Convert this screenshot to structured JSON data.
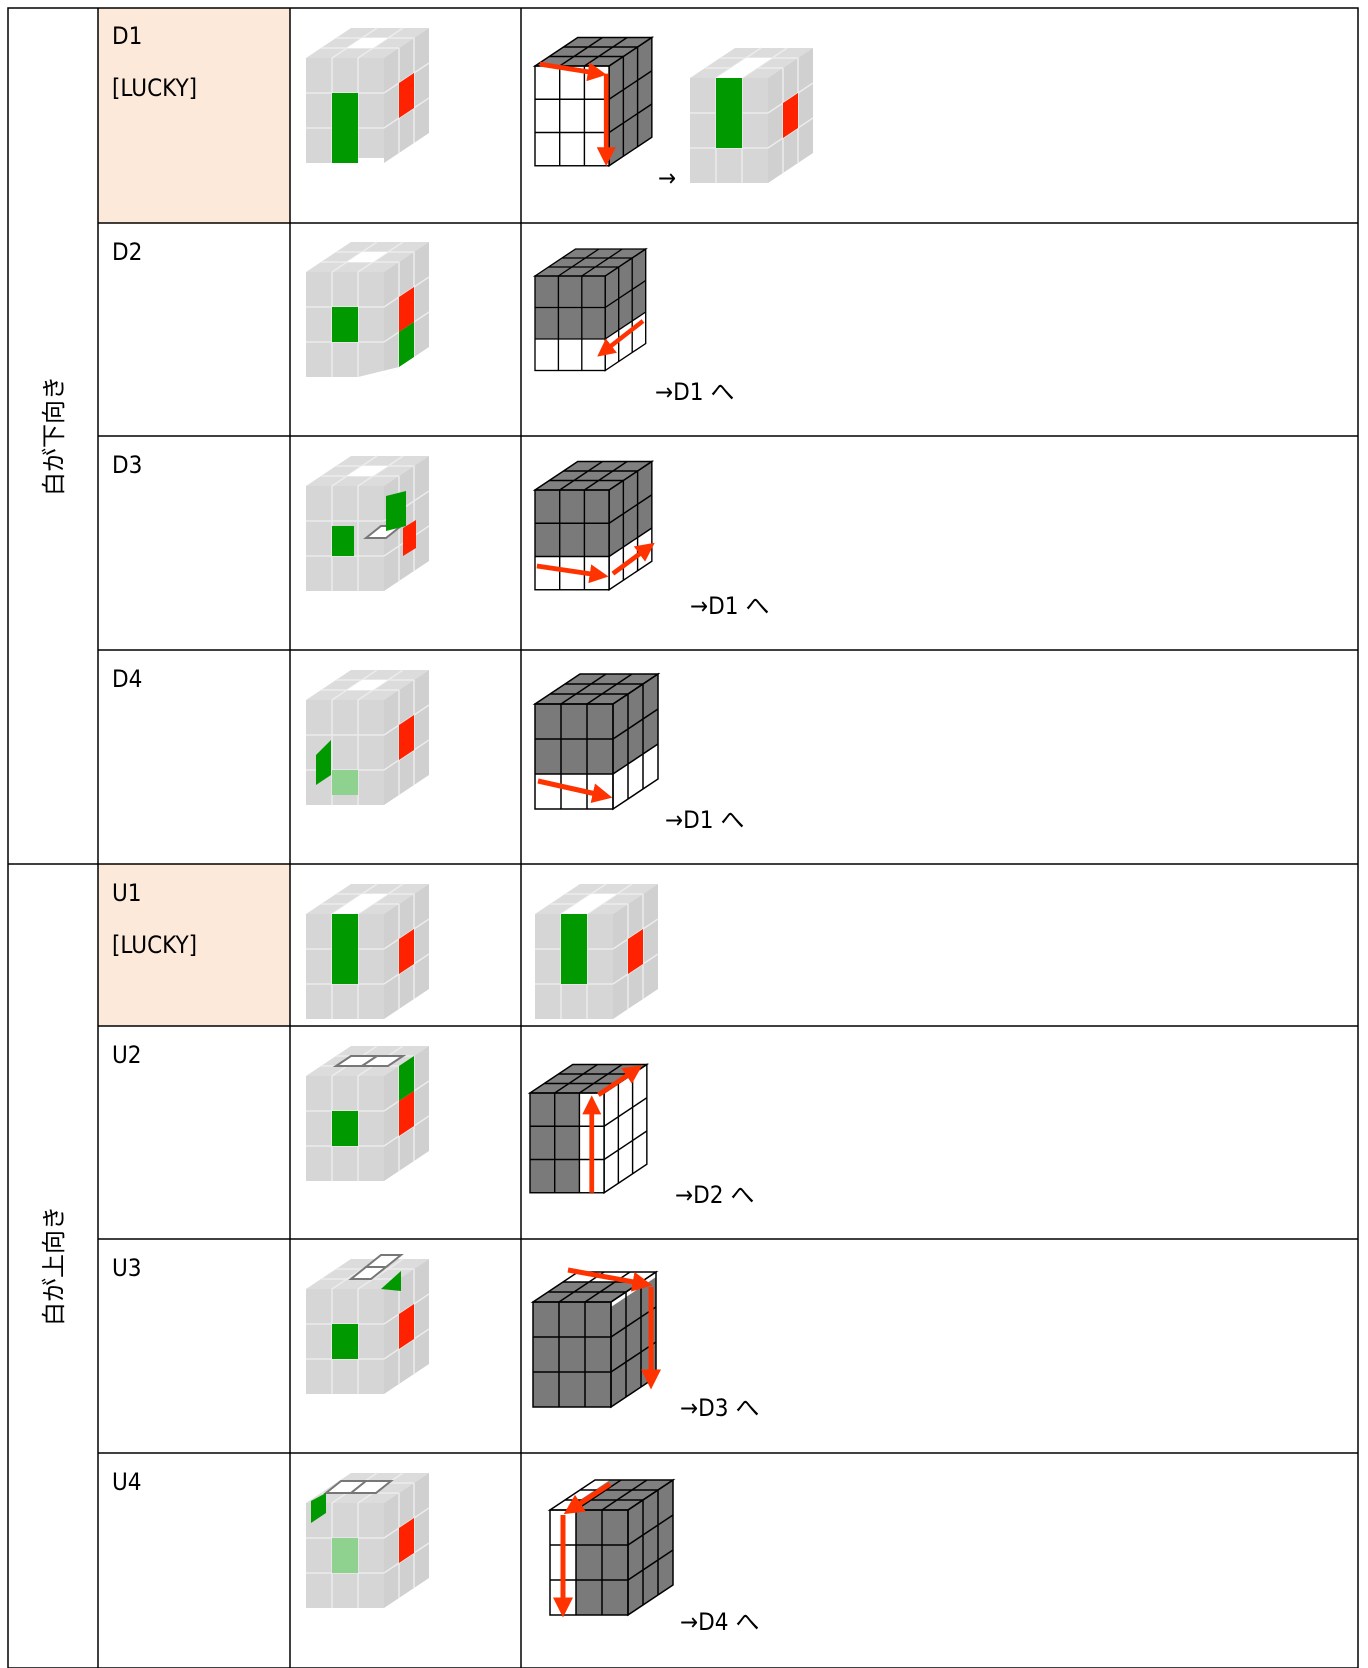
{
  "groups": [
    {
      "label": "白が下向き",
      "rows": [
        {
          "id": "D1",
          "tag": "[LUCKY]",
          "note": "→"
        },
        {
          "id": "D2",
          "note": "→D1 へ"
        },
        {
          "id": "D3",
          "note": "→D1 へ"
        },
        {
          "id": "D4",
          "note": "→D1 へ"
        }
      ]
    },
    {
      "label": "白が上向き",
      "rows": [
        {
          "id": "U1",
          "tag": "[LUCKY]"
        },
        {
          "id": "U2",
          "note": "→D2 へ"
        },
        {
          "id": "U3",
          "note": "→D3 へ"
        },
        {
          "id": "U4",
          "note": "→D4 へ"
        }
      ]
    }
  ]
}
